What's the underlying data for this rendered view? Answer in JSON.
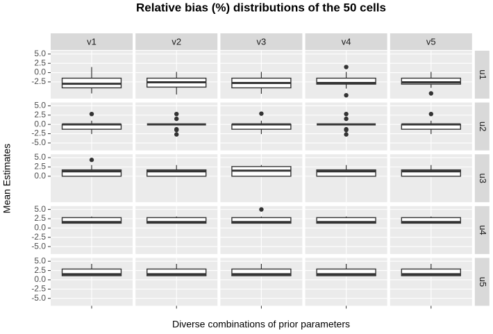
{
  "chart_data": {
    "type": "box",
    "title": "Relative bias (%) distributions of the 50 cells",
    "x_label": "Diverse combinations of prior parameters",
    "y_label": "Mean Estimates",
    "columns": [
      "v1",
      "v2",
      "v3",
      "v4",
      "v5"
    ],
    "ylim": [
      -7.0,
      5.9
    ],
    "box_color": "#333333",
    "box_fill": "#ffffff",
    "panel_color": "#ebebeb",
    "strip_color": "#d9d9d9",
    "grid": true,
    "rows": [
      {
        "name": "u1",
        "yticks": [
          {
            "value": 5,
            "label": "5.0"
          },
          2.5,
          {
            "value": 0,
            "label": "0.0"
          },
          -2.5
        ],
        "boxes": [
          {
            "min": -5.6,
            "q1": -4.1,
            "median": -3.0,
            "q3": -1.5,
            "max": 1.5,
            "outliers": []
          },
          {
            "min": -5.9,
            "q1": -3.9,
            "median": -2.6,
            "q3": -1.5,
            "max": 0.2,
            "outliers": []
          },
          {
            "min": -5.7,
            "q1": -4.1,
            "median": -2.8,
            "q3": -1.5,
            "max": 0.2,
            "outliers": []
          },
          {
            "min": -4.3,
            "q1": -3.1,
            "median": -2.8,
            "q3": -1.5,
            "max": 0.2,
            "outliers": [
              1.5,
              -6.1
            ]
          },
          {
            "min": -4.1,
            "q1": -3.1,
            "median": -2.6,
            "q3": -1.5,
            "max": 0.2,
            "outliers": [
              -5.6
            ]
          }
        ]
      },
      {
        "name": "u2",
        "yticks": [
          {
            "value": 5,
            "label": "5.0"
          },
          2.5,
          {
            "value": 0,
            "label": "0.0"
          },
          -2.5,
          {
            "value": -5,
            "label": "-5.0"
          }
        ],
        "boxes": [
          {
            "min": -2.6,
            "q1": -1.3,
            "median": 0.0,
            "q3": 0.0,
            "max": 1.0,
            "outliers": [
              2.8
            ]
          },
          {
            "min": 0.0,
            "q1": 0.0,
            "median": 0.0,
            "q3": 0.0,
            "max": 0.0,
            "outliers": [
              2.8,
              1.5,
              -1.3,
              -1.5,
              -2.7
            ]
          },
          {
            "min": -2.6,
            "q1": -1.3,
            "median": 0.0,
            "q3": 0.0,
            "max": 1.0,
            "outliers": [
              2.9
            ]
          },
          {
            "min": 0.0,
            "q1": 0.0,
            "median": 0.0,
            "q3": 0.0,
            "max": 0.0,
            "outliers": [
              2.8,
              1.5,
              -1.3,
              -1.5,
              -2.7
            ]
          },
          {
            "min": -2.6,
            "q1": -1.3,
            "median": 0.0,
            "q3": 0.0,
            "max": 1.0,
            "outliers": [
              2.8
            ]
          }
        ]
      },
      {
        "name": "u3",
        "yticks": [
          {
            "value": 5,
            "label": "5.0"
          },
          2.5,
          {
            "value": 0,
            "label": "0.0"
          }
        ],
        "boxes": [
          {
            "min": 0.0,
            "q1": 0.0,
            "median": 1.3,
            "q3": 1.7,
            "max": 3.0,
            "outliers": [
              4.4
            ]
          },
          {
            "min": 0.0,
            "q1": 0.0,
            "median": 1.3,
            "q3": 1.7,
            "max": 3.0,
            "outliers": []
          },
          {
            "min": 0.0,
            "q1": 0.0,
            "median": 1.5,
            "q3": 2.6,
            "max": 3.0,
            "outliers": []
          },
          {
            "min": 0.0,
            "q1": 0.0,
            "median": 1.3,
            "q3": 1.7,
            "max": 3.0,
            "outliers": []
          },
          {
            "min": 0.0,
            "q1": 0.0,
            "median": 1.3,
            "q3": 1.7,
            "max": 3.0,
            "outliers": []
          }
        ]
      },
      {
        "name": "u4",
        "yticks": [
          {
            "value": 5,
            "label": "5.0"
          },
          2.5,
          {
            "value": 0,
            "label": "0.0"
          },
          -2.5,
          {
            "value": -5,
            "label": "-5.0"
          }
        ],
        "boxes": [
          {
            "min": 1.3,
            "q1": 1.3,
            "median": 1.6,
            "q3": 2.8,
            "max": 3.1,
            "outliers": []
          },
          {
            "min": 1.3,
            "q1": 1.3,
            "median": 1.6,
            "q3": 2.8,
            "max": 3.1,
            "outliers": []
          },
          {
            "min": 1.3,
            "q1": 1.3,
            "median": 1.6,
            "q3": 2.8,
            "max": 3.1,
            "outliers": [
              5.0
            ]
          },
          {
            "min": 1.3,
            "q1": 1.3,
            "median": 1.6,
            "q3": 2.8,
            "max": 3.1,
            "outliers": []
          },
          {
            "min": 1.3,
            "q1": 1.3,
            "median": 1.6,
            "q3": 2.8,
            "max": 3.1,
            "outliers": []
          }
        ]
      },
      {
        "name": "u5",
        "yticks": [
          {
            "value": 5,
            "label": "5.0"
          },
          2.5,
          {
            "value": 0,
            "label": "0.0"
          },
          -2.5,
          {
            "value": -5,
            "label": "-5.0"
          }
        ],
        "boxes": [
          {
            "min": 1.0,
            "q1": 1.1,
            "median": 1.5,
            "q3": 2.9,
            "max": 4.3,
            "outliers": []
          },
          {
            "min": 1.0,
            "q1": 1.1,
            "median": 1.5,
            "q3": 2.9,
            "max": 4.3,
            "outliers": []
          },
          {
            "min": 1.0,
            "q1": 1.1,
            "median": 1.5,
            "q3": 2.9,
            "max": 4.3,
            "outliers": []
          },
          {
            "min": 1.0,
            "q1": 1.1,
            "median": 1.5,
            "q3": 2.9,
            "max": 4.3,
            "outliers": []
          },
          {
            "min": 1.0,
            "q1": 1.1,
            "median": 1.5,
            "q3": 2.9,
            "max": 4.3,
            "outliers": []
          }
        ]
      }
    ]
  }
}
